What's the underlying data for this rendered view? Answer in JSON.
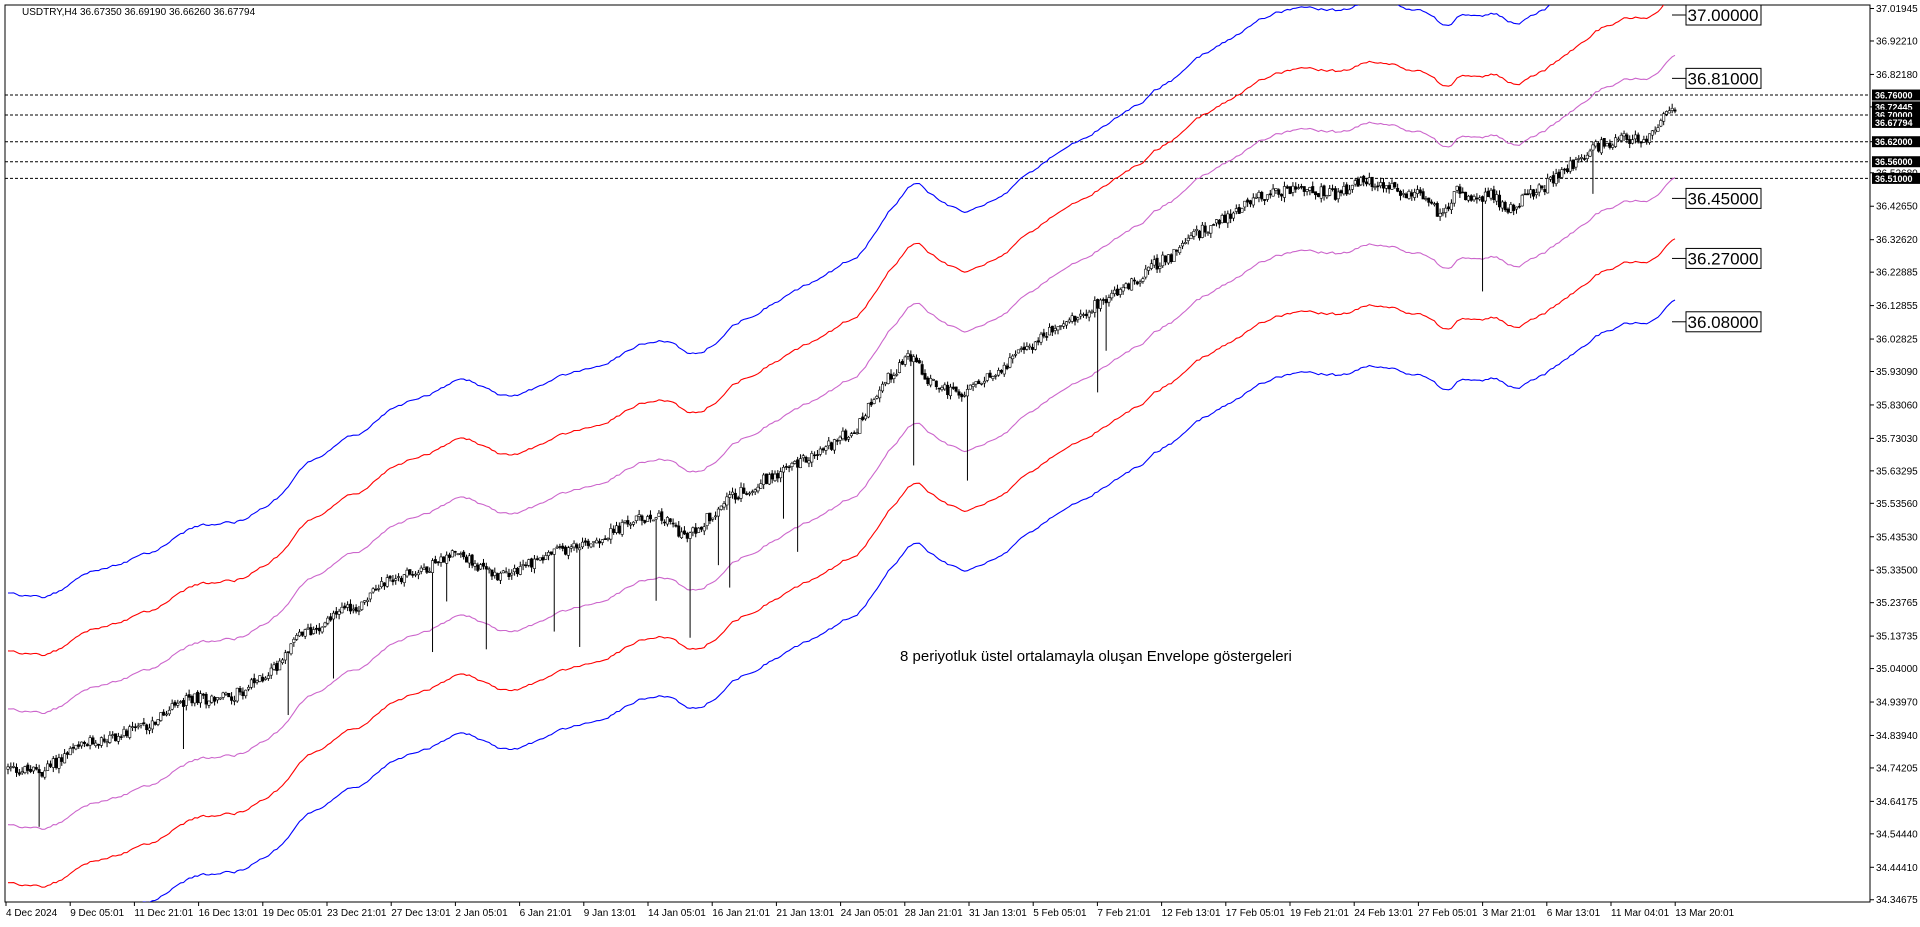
{
  "chart_data": {
    "type": "candlestick",
    "title": "USDTRY,H4  36.67350 36.69190 36.66260 36.67794",
    "annotation": "8 periyotluk üstel ortalamayla oluşan Envelope göstergeleri",
    "ylim": [
      34.34,
      37.03
    ],
    "y_ticks": [
      "37.01945",
      "36.92210",
      "36.82180",
      "36.72445",
      "36.62000",
      "36.52680",
      "36.42650",
      "36.32620",
      "36.22885",
      "36.12855",
      "36.02825",
      "35.93090",
      "35.83060",
      "35.73030",
      "35.63295",
      "35.53560",
      "35.43530",
      "35.33500",
      "35.23765",
      "35.13735",
      "35.04000",
      "34.93970",
      "34.83940",
      "34.74205",
      "34.64175",
      "34.54440",
      "34.44410",
      "34.34675"
    ],
    "x_ticks": [
      "4 Dec 2024",
      "9 Dec 05:01",
      "11 Dec 21:01",
      "16 Dec 13:01",
      "19 Dec 05:01",
      "23 Dec 21:01",
      "27 Dec 13:01",
      "2 Jan 05:01",
      "6 Jan 21:01",
      "9 Jan 13:01",
      "14 Jan 05:01",
      "16 Jan 21:01",
      "21 Jan 13:01",
      "24 Jan 05:01",
      "28 Jan 21:01",
      "31 Jan 13:01",
      "5 Feb 05:01",
      "7 Feb 21:01",
      "12 Feb 13:01",
      "17 Feb 05:01",
      "19 Feb 21:01",
      "24 Feb 13:01",
      "27 Feb 05:01",
      "3 Mar 21:01",
      "6 Mar 13:01",
      "11 Mar 04:01",
      "13 Mar 20:01"
    ],
    "horizontal_lines": [
      36.76,
      36.7,
      36.62,
      36.56,
      36.51
    ],
    "right_price_tags": [
      "36.76000",
      "36.72445",
      "36.70000",
      "36.67794",
      "36.62000",
      "36.56000",
      "36.51000"
    ],
    "level_labels": [
      "37.00000",
      "36.81000",
      "36.45000",
      "36.27000",
      "36.08000"
    ],
    "level_values": [
      37.0,
      36.81,
      36.45,
      36.27,
      36.08
    ],
    "close_path": [
      [
        0,
        34.74
      ],
      [
        12,
        34.73
      ],
      [
        22,
        34.79
      ],
      [
        30,
        34.82
      ],
      [
        40,
        34.84
      ],
      [
        50,
        34.87
      ],
      [
        60,
        34.93
      ],
      [
        65,
        34.95
      ],
      [
        70,
        34.95
      ],
      [
        80,
        34.96
      ],
      [
        88,
        35.0
      ],
      [
        95,
        35.05
      ],
      [
        100,
        35.12
      ],
      [
        110,
        35.17
      ],
      [
        115,
        35.2
      ],
      [
        125,
        35.23
      ],
      [
        132,
        35.3
      ],
      [
        140,
        35.32
      ],
      [
        150,
        35.35
      ],
      [
        158,
        35.4
      ],
      [
        165,
        35.35
      ],
      [
        172,
        35.32
      ],
      [
        180,
        35.34
      ],
      [
        190,
        35.38
      ],
      [
        198,
        35.4
      ],
      [
        205,
        35.42
      ],
      [
        212,
        35.44
      ],
      [
        220,
        35.48
      ],
      [
        228,
        35.5
      ],
      [
        235,
        35.47
      ],
      [
        240,
        35.43
      ],
      [
        248,
        35.5
      ],
      [
        255,
        35.55
      ],
      [
        262,
        35.58
      ],
      [
        270,
        35.62
      ],
      [
        278,
        35.65
      ],
      [
        285,
        35.68
      ],
      [
        292,
        35.72
      ],
      [
        300,
        35.76
      ],
      [
        306,
        35.86
      ],
      [
        312,
        35.92
      ],
      [
        318,
        35.98
      ],
      [
        326,
        35.9
      ],
      [
        335,
        35.86
      ],
      [
        345,
        35.9
      ],
      [
        352,
        35.95
      ],
      [
        360,
        36.0
      ],
      [
        368,
        36.05
      ],
      [
        378,
        36.1
      ],
      [
        388,
        36.15
      ],
      [
        398,
        36.2
      ],
      [
        405,
        36.25
      ],
      [
        412,
        36.28
      ],
      [
        418,
        36.33
      ],
      [
        425,
        36.37
      ],
      [
        432,
        36.4
      ],
      [
        440,
        36.45
      ],
      [
        448,
        36.47
      ],
      [
        455,
        36.48
      ],
      [
        462,
        36.47
      ],
      [
        470,
        36.46
      ],
      [
        478,
        36.5
      ],
      [
        485,
        36.49
      ],
      [
        492,
        36.47
      ],
      [
        500,
        36.46
      ],
      [
        506,
        36.4
      ],
      [
        512,
        36.47
      ],
      [
        518,
        36.44
      ],
      [
        524,
        36.46
      ],
      [
        530,
        36.42
      ],
      [
        536,
        36.45
      ],
      [
        542,
        36.48
      ],
      [
        548,
        36.52
      ],
      [
        552,
        36.55
      ],
      [
        556,
        36.57
      ],
      [
        560,
        36.6
      ],
      [
        566,
        36.62
      ],
      [
        572,
        36.63
      ],
      [
        578,
        36.62
      ],
      [
        582,
        36.66
      ],
      [
        586,
        36.71
      ]
    ]
  }
}
